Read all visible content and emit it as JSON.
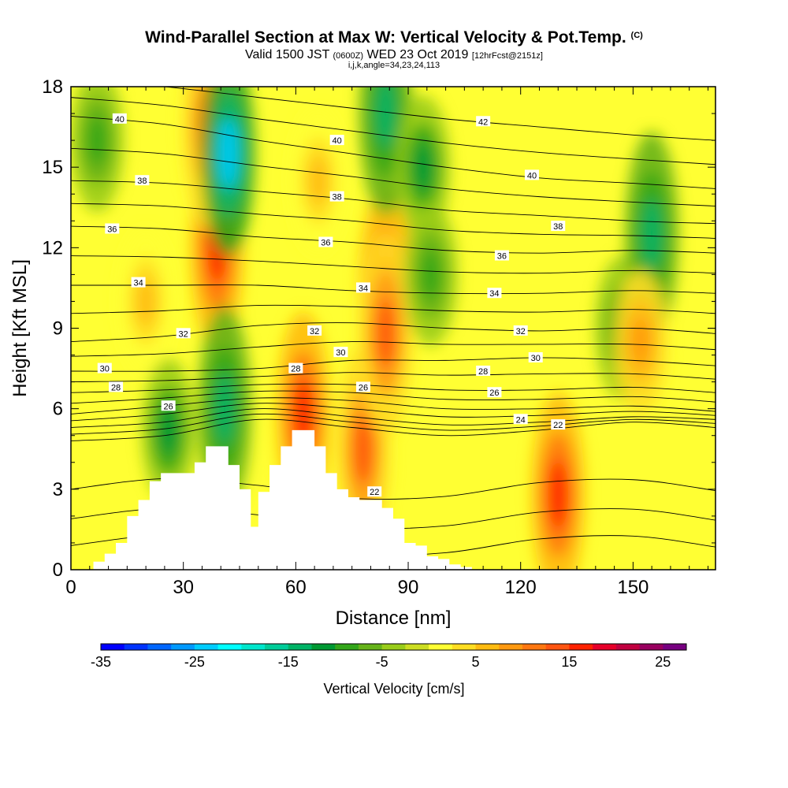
{
  "header": {
    "title": "Wind-Parallel Section at Max W: Vertical Velocity & Pot.Temp.",
    "copyright": "(C)",
    "valid_prefix": "Valid 1500 JST",
    "valid_utc": "(0600Z)",
    "valid_date": "WED 23 Oct 2019",
    "forecast": "[12hrFcst@2151z]",
    "indices": "i,j,k,angle=34,23,24,113"
  },
  "colors": {
    "plot_background": "#ffff33",
    "terrain": "#ffffff",
    "contour_line": "#000000",
    "velocity_scale": [
      "#0000ff",
      "#0033ff",
      "#0066ff",
      "#0099ff",
      "#00ccff",
      "#00ffff",
      "#00e6cc",
      "#00cc99",
      "#00b366",
      "#009933",
      "#33a61a",
      "#66b31a",
      "#99cc1a",
      "#ccdd22",
      "#ffff33",
      "#ffdd22",
      "#ffbb11",
      "#ff9911",
      "#ff7711",
      "#ff5511",
      "#ff2200",
      "#e6002a",
      "#c00040",
      "#990060",
      "#770080"
    ]
  },
  "chart_data": {
    "type": "heatmap",
    "subtype": "vertical cross-section, filled contours with line contours",
    "xlabel": "Distance [nm]",
    "ylabel": "Height [Kft MSL]",
    "xlim": [
      0,
      172
    ],
    "ylim": [
      0,
      18
    ],
    "xticks": [
      0,
      30,
      60,
      90,
      120,
      150
    ],
    "yticks": [
      0,
      3,
      6,
      9,
      12,
      15,
      18
    ],
    "colorbar": {
      "label": "Vertical Velocity [cm/s]",
      "min": -35,
      "max": 27.5,
      "step": 2.5,
      "tick_values": [
        -35,
        -25,
        -15,
        -5,
        5,
        15,
        25
      ]
    },
    "terrain_profile": {
      "x": [
        0,
        6,
        9,
        12,
        15,
        18,
        21,
        24,
        27,
        30,
        33,
        36,
        39,
        42,
        45,
        48,
        50,
        53,
        56,
        59,
        62,
        65,
        68,
        71,
        74,
        77,
        80,
        83,
        86,
        89,
        92,
        95,
        98,
        101,
        104,
        107,
        110
      ],
      "height": [
        0,
        0.3,
        0.6,
        1.0,
        2.0,
        2.6,
        3.3,
        3.6,
        3.6,
        3.6,
        4.0,
        4.6,
        4.6,
        3.9,
        3.0,
        1.6,
        2.9,
        3.9,
        4.6,
        5.2,
        5.2,
        4.6,
        3.6,
        3.0,
        2.7,
        2.6,
        2.6,
        2.3,
        1.9,
        1.0,
        0.9,
        0.5,
        0.4,
        0.2,
        0.1,
        0.0,
        0.0
      ]
    },
    "velocity_features": [
      {
        "x": 39,
        "y": 12.0,
        "value": 17
      },
      {
        "x": 37,
        "y": 16.5,
        "value": 14
      },
      {
        "x": 42,
        "y": 15.5,
        "value": -23
      },
      {
        "x": 41,
        "y": 6.0,
        "value": -15
      },
      {
        "x": 62,
        "y": 5.8,
        "value": 16
      },
      {
        "x": 66,
        "y": 14.5,
        "value": 7
      },
      {
        "x": 78,
        "y": 4.5,
        "value": 13
      },
      {
        "x": 84,
        "y": 10.5,
        "value": 17
      },
      {
        "x": 84,
        "y": 8.8,
        "value": 14
      },
      {
        "x": 84,
        "y": 17.0,
        "value": -15
      },
      {
        "x": 94,
        "y": 15.0,
        "value": -12
      },
      {
        "x": 96,
        "y": 11.0,
        "value": -10
      },
      {
        "x": 130,
        "y": 2.8,
        "value": 17
      },
      {
        "x": 147,
        "y": 9.0,
        "value": -8
      },
      {
        "x": 155,
        "y": 12.5,
        "value": -15
      },
      {
        "x": 7,
        "y": 16.0,
        "value": -10
      },
      {
        "x": 26,
        "y": 5.2,
        "value": -12
      },
      {
        "x": 152,
        "y": 8.5,
        "value": 8
      },
      {
        "x": 20,
        "y": 10.0,
        "value": 5
      }
    ],
    "theta_contours": [
      {
        "label": "22",
        "label_pos": [
          130,
          5.4
        ],
        "y": [
          4.8,
          5.0,
          5.6,
          5.3,
          5.0,
          5.2,
          5.5,
          5.3
        ]
      },
      {
        "label": "24",
        "label_pos": [
          120,
          5.6
        ],
        "y": [
          5.3,
          5.5,
          6.0,
          5.7,
          5.4,
          5.5,
          5.7,
          5.6
        ]
      },
      {
        "label": "26",
        "label_pos": [
          26,
          6.1
        ],
        "y": [
          5.8,
          6.1,
          6.4,
          6.3,
          6.0,
          6.0,
          6.1,
          5.9
        ]
      },
      {
        "label": "28",
        "label_pos": [
          12,
          6.8
        ],
        "y": [
          6.6,
          6.7,
          6.9,
          6.9,
          6.7,
          6.7,
          6.8,
          6.6
        ]
      },
      {
        "label": "30",
        "label_pos": [
          9,
          7.5
        ],
        "y": [
          7.4,
          7.4,
          7.5,
          7.8,
          7.8,
          7.9,
          7.8,
          7.6
        ]
      },
      {
        "label": "32",
        "label_pos": [
          30,
          8.8
        ],
        "y": [
          8.5,
          8.7,
          9.1,
          9.2,
          9.0,
          8.9,
          9.0,
          8.8
        ]
      },
      {
        "label": "34",
        "label_pos": [
          18,
          10.7
        ],
        "y": [
          10.6,
          10.6,
          10.6,
          10.4,
          10.3,
          10.3,
          10.4,
          10.3
        ]
      },
      {
        "label": "36",
        "label_pos": [
          11,
          12.7
        ],
        "y": [
          12.8,
          12.7,
          12.4,
          12.2,
          11.9,
          11.8,
          11.9,
          11.8
        ]
      },
      {
        "label": "38",
        "label_pos": [
          19,
          14.5
        ],
        "y": [
          14.5,
          14.4,
          14.1,
          13.8,
          13.4,
          13.2,
          13.0,
          12.9
        ]
      },
      {
        "label": "40",
        "label_pos": [
          13,
          16.8
        ],
        "y": [
          16.9,
          16.6,
          16.0,
          15.5,
          15.0,
          14.6,
          14.4,
          14.2
        ]
      },
      {
        "label": "42",
        "label_pos": [
          110,
          16.7
        ],
        "y": [
          18.3,
          18.0,
          17.6,
          17.2,
          16.8,
          16.5,
          16.2,
          16.0
        ]
      }
    ],
    "contour_x": [
      0,
      25,
      50,
      75,
      100,
      125,
      150,
      172
    ],
    "extra_contour_labels": [
      {
        "label": "40",
        "x": 71,
        "y": 16.0
      },
      {
        "label": "40",
        "x": 123,
        "y": 14.7
      },
      {
        "label": "38",
        "x": 71,
        "y": 13.9
      },
      {
        "label": "38",
        "x": 130,
        "y": 12.8
      },
      {
        "label": "36",
        "x": 68,
        "y": 12.2
      },
      {
        "label": "36",
        "x": 115,
        "y": 11.7
      },
      {
        "label": "34",
        "x": 78,
        "y": 10.5
      },
      {
        "label": "34",
        "x": 113,
        "y": 10.3
      },
      {
        "label": "32",
        "x": 65,
        "y": 8.9
      },
      {
        "label": "32",
        "x": 120,
        "y": 8.9
      },
      {
        "label": "30",
        "x": 72,
        "y": 8.1
      },
      {
        "label": "30",
        "x": 124,
        "y": 7.9
      },
      {
        "label": "28",
        "x": 60,
        "y": 7.5
      },
      {
        "label": "28",
        "x": 110,
        "y": 7.4
      },
      {
        "label": "26",
        "x": 78,
        "y": 6.8
      },
      {
        "label": "26",
        "x": 113,
        "y": 6.6
      },
      {
        "label": "22",
        "x": 81,
        "y": 2.9
      }
    ]
  }
}
